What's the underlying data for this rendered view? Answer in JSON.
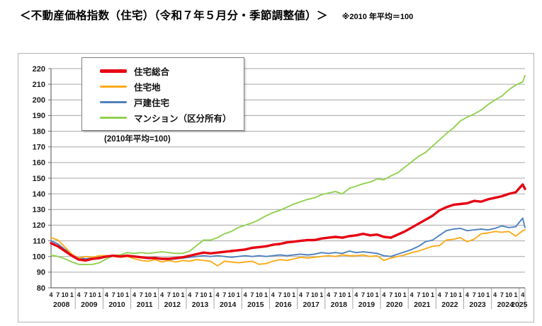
{
  "header": {
    "title": "＜不動産価格指数（住宅）（令和７年５月分・季節調整値）＞",
    "note": "※2010 年平均＝100"
  },
  "chart_data": {
    "type": "line",
    "title": "不動産価格指数（住宅）（令和７年５月分・季節調整値）",
    "title_note": "※2010 年平均＝100",
    "in_chart_note": "(2010年平均=100)",
    "ylim": [
      80,
      220
    ],
    "ytick_interval": 10,
    "grid": true,
    "legend_position": "top-left",
    "x_tick_months": [
      "4",
      "7",
      "10",
      "1"
    ],
    "x_years": [
      "2008",
      "2009",
      "2010",
      "2011",
      "2012",
      "2013",
      "2014",
      "2015",
      "2016",
      "2017",
      "2018",
      "2019",
      "2020",
      "2021",
      "2022",
      "2023",
      "2024",
      "2025"
    ],
    "x": [
      "2008-04",
      "2008-07",
      "2008-10",
      "2009-01",
      "2009-04",
      "2009-07",
      "2009-10",
      "2010-01",
      "2010-04",
      "2010-07",
      "2010-10",
      "2011-01",
      "2011-04",
      "2011-07",
      "2011-10",
      "2012-01",
      "2012-04",
      "2012-07",
      "2012-10",
      "2013-01",
      "2013-04",
      "2013-07",
      "2013-10",
      "2014-01",
      "2014-04",
      "2014-07",
      "2014-10",
      "2015-01",
      "2015-04",
      "2015-07",
      "2015-10",
      "2016-01",
      "2016-04",
      "2016-07",
      "2016-10",
      "2017-01",
      "2017-04",
      "2017-07",
      "2017-10",
      "2018-01",
      "2018-04",
      "2018-07",
      "2018-10",
      "2019-01",
      "2019-04",
      "2019-07",
      "2019-10",
      "2020-01",
      "2020-04",
      "2020-07",
      "2020-10",
      "2021-01",
      "2021-04",
      "2021-07",
      "2021-10",
      "2022-01",
      "2022-04",
      "2022-07",
      "2022-10",
      "2023-01",
      "2023-04",
      "2023-07",
      "2023-10",
      "2024-01",
      "2024-04",
      "2024-07",
      "2024-10",
      "2025-01",
      "2025-04",
      "2025-05"
    ],
    "series": [
      {
        "name": "住宅総合",
        "color": "#e60012",
        "line_width": 3.4,
        "values": [
          108.5,
          106.5,
          103.5,
          100.5,
          98.0,
          97.5,
          98.5,
          99.0,
          100.0,
          100.5,
          100.0,
          100.5,
          100.0,
          99.5,
          99.0,
          99.0,
          98.5,
          98.5,
          99.0,
          99.5,
          100.5,
          101.5,
          102.5,
          102.0,
          102.5,
          103.0,
          103.5,
          104.0,
          104.5,
          105.5,
          106.0,
          106.5,
          107.5,
          108.0,
          109.0,
          109.5,
          110.0,
          110.5,
          110.5,
          111.5,
          112.0,
          112.5,
          112.0,
          113.0,
          113.5,
          114.5,
          113.5,
          114.0,
          112.5,
          112.0,
          114.0,
          116.0,
          118.5,
          121.0,
          123.5,
          126.0,
          129.5,
          131.5,
          133.0,
          133.5,
          134.0,
          135.5,
          135.0,
          136.5,
          137.5,
          138.5,
          140.0,
          141.0,
          146.0,
          143.2
        ]
      },
      {
        "name": "住宅地",
        "color": "#fbab18",
        "line_width": 1.9,
        "values": [
          112.0,
          110.5,
          106.0,
          101.5,
          99.0,
          100.0,
          99.5,
          100.5,
          100.5,
          100.0,
          99.5,
          100.0,
          98.5,
          97.5,
          97.0,
          98.0,
          96.5,
          97.5,
          96.5,
          97.5,
          97.0,
          98.0,
          97.5,
          97.0,
          94.0,
          97.0,
          96.5,
          96.0,
          96.5,
          97.0,
          95.0,
          95.5,
          97.0,
          98.0,
          97.5,
          98.5,
          99.5,
          99.0,
          99.5,
          100.0,
          100.5,
          100.0,
          101.0,
          100.5,
          100.5,
          101.0,
          100.0,
          100.5,
          97.5,
          99.0,
          100.0,
          101.0,
          102.5,
          103.5,
          105.0,
          106.5,
          107.0,
          110.5,
          111.0,
          112.0,
          109.5,
          111.0,
          114.5,
          115.0,
          116.0,
          115.5,
          116.0,
          113.0,
          116.5,
          117.0
        ]
      },
      {
        "name": "戸建住宅",
        "color": "#4f81bd",
        "line_width": 1.9,
        "values": [
          110.0,
          108.0,
          104.5,
          101.5,
          99.0,
          98.5,
          99.0,
          99.5,
          100.0,
          100.5,
          100.0,
          100.5,
          100.0,
          99.5,
          99.0,
          99.5,
          98.5,
          98.0,
          98.5,
          99.0,
          99.5,
          100.0,
          100.5,
          100.0,
          100.5,
          100.0,
          99.5,
          100.0,
          100.5,
          100.0,
          100.5,
          100.0,
          100.5,
          101.0,
          100.5,
          101.0,
          101.5,
          101.0,
          101.5,
          102.5,
          102.0,
          102.5,
          102.0,
          103.5,
          102.5,
          103.0,
          102.5,
          102.0,
          100.5,
          100.0,
          101.5,
          103.0,
          104.5,
          106.5,
          109.5,
          110.5,
          113.5,
          116.5,
          117.5,
          118.0,
          116.5,
          117.0,
          117.5,
          117.0,
          118.0,
          119.5,
          118.5,
          119.0,
          124.5,
          118.5
        ]
      },
      {
        "name": "マンション（区分所有）",
        "color": "#92d050",
        "line_width": 1.9,
        "values": [
          101.0,
          100.0,
          98.5,
          96.5,
          95.0,
          94.8,
          95.0,
          96.0,
          98.5,
          100.5,
          101.0,
          102.5,
          102.0,
          102.5,
          102.0,
          102.5,
          103.0,
          102.5,
          102.0,
          102.0,
          103.5,
          107.0,
          110.5,
          110.5,
          112.0,
          114.5,
          116.0,
          118.5,
          120.0,
          121.5,
          123.5,
          126.0,
          128.0,
          129.5,
          131.5,
          133.5,
          135.0,
          136.5,
          137.5,
          139.5,
          140.5,
          141.5,
          140.0,
          143.5,
          145.0,
          146.5,
          147.5,
          149.5,
          149.0,
          151.5,
          153.5,
          157.0,
          160.5,
          164.0,
          166.5,
          170.5,
          174.5,
          178.5,
          182.0,
          186.5,
          189.0,
          191.0,
          193.5,
          197.0,
          200.0,
          202.5,
          206.5,
          209.5,
          211.5,
          215.5
        ]
      }
    ]
  }
}
